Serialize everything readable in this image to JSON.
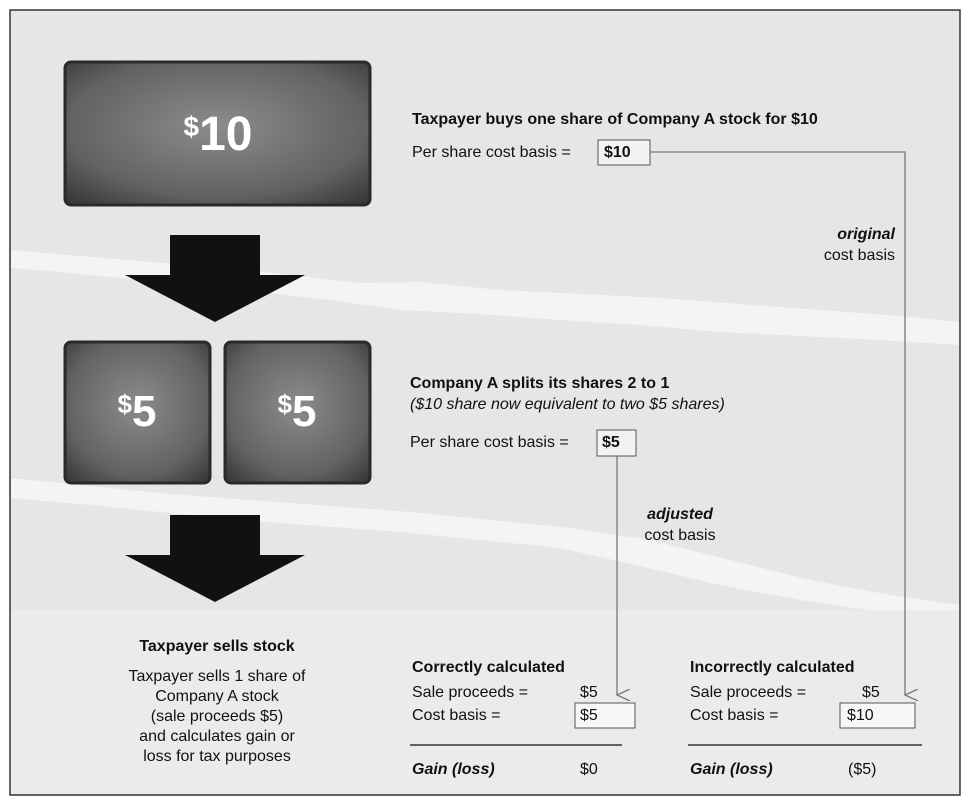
{
  "tiles": [
    {
      "currency": "$",
      "amount": "10"
    },
    {
      "currency": "$",
      "amount": "5"
    },
    {
      "currency": "$",
      "amount": "5"
    }
  ],
  "buy": {
    "title": "Taxpayer buys one share of Company A stock for $10",
    "basis_label": "Per share cost basis =",
    "basis_value": "$10"
  },
  "original_note": {
    "emphasis": "original",
    "text": "cost basis"
  },
  "split": {
    "title": "Company A splits its shares 2 to 1",
    "subtitle": "($10 share now equivalent to two $5 shares)",
    "basis_label": "Per share cost basis =",
    "basis_value": "$5"
  },
  "adjusted_note": {
    "emphasis": "adjusted",
    "text": "cost basis"
  },
  "sell": {
    "title": "Taxpayer sells stock",
    "lines": [
      "Taxpayer sells 1 share of",
      "Company A stock",
      "(sale proceeds $5)",
      "and calculates gain or",
      "loss for tax purposes"
    ]
  },
  "correct": {
    "title": "Correctly calculated",
    "proceeds_label": "Sale proceeds =",
    "proceeds_value": "$5",
    "basis_label": "Cost basis =",
    "basis_value": "$5",
    "gain_label": "Gain (loss)",
    "gain_value": "$0"
  },
  "incorrect": {
    "title": "Incorrectly calculated",
    "proceeds_label": "Sale proceeds =",
    "proceeds_value": "$5",
    "basis_label": "Cost basis =",
    "basis_value": "$10",
    "gain_label": "Gain (loss)",
    "gain_value": "($5)"
  }
}
